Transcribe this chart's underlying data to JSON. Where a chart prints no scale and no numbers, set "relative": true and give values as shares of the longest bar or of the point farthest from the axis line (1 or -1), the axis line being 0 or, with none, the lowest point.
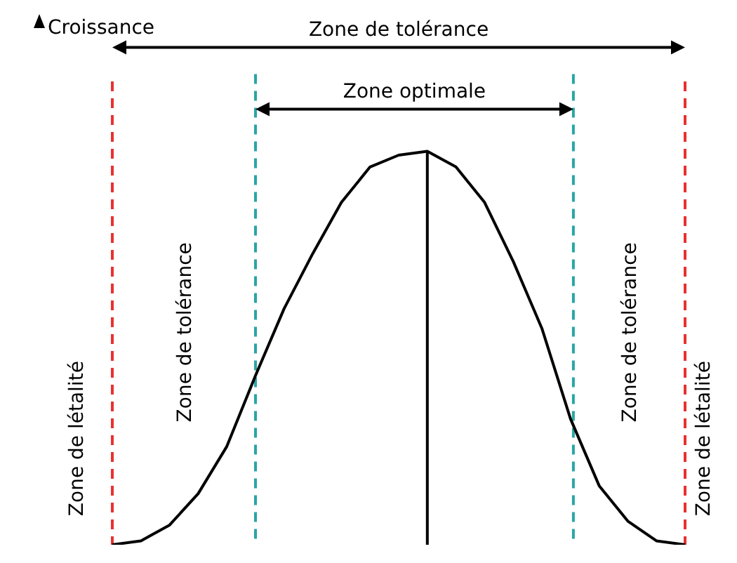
{
  "chart_data": {
    "type": "line",
    "relative": true,
    "color": "#000000",
    "line_style": "solid",
    "categories": [
      null,
      null,
      null,
      null,
      null,
      null,
      null,
      null,
      null,
      null,
      null,
      null,
      null,
      null,
      null,
      null,
      null,
      null,
      null,
      null,
      null
    ],
    "values": [
      0,
      0.01,
      0.05,
      0.13,
      0.25,
      0.43,
      0.6,
      0.74,
      0.87,
      0.96,
      0.99,
      1,
      0.96,
      0.87,
      0.72,
      0.55,
      0.32,
      0.15,
      0.06,
      0.01,
      0
    ],
    "annotations": [
      "Croissance",
      "Zone de tolérance",
      "Zone optimale",
      "Zone de létalité",
      "Zone de tolérance",
      "Zone de tolérance",
      "Zone de létalité"
    ]
  }
}
